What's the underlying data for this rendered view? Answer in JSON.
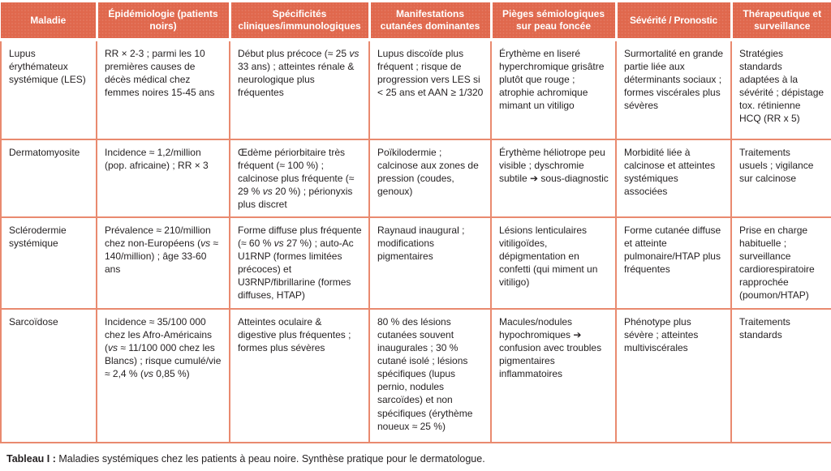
{
  "colors": {
    "header_bg": "#E0684D",
    "header_text": "#FFFFFF",
    "border": "#E98A6F",
    "body_text": "#231F20"
  },
  "table": {
    "columns": [
      "Maladie",
      "Épidémiologie (patients noirs)",
      "Spécificités cliniques/immunologiques",
      "Manifestations cutanées dominantes",
      "Pièges sémiologiques sur peau foncée",
      "Sévérité / Pronostic",
      "Thérapeutique et surveillance"
    ],
    "rows": [
      {
        "cells": [
          "Lupus érythémateux systémique (LES)",
          "RR × 2-3 ; parmi les 10 premières causes de décès médical chez femmes noires 15-45 ans",
          "Début plus précoce (≈ 25 vs 33 ans) ; atteintes rénale & neurologique plus fréquentes",
          "Lupus discoïde plus fréquent ; risque de progression vers LES si < 25 ans et AAN ≥ 1/320",
          "Érythème en liseré hyperchromique grisâtre plutôt que rouge ; atrophie achromique mimant un vitiligo",
          "Surmortalité en grande partie liée aux déterminants sociaux ; formes viscérales plus sévères",
          "Stratégies standards adaptées à la sévérité ; dépistage tox. rétinienne HCQ (RR x 5)"
        ]
      },
      {
        "cells": [
          "Dermatomyosite",
          "Incidence ≈ 1,2/million (pop. africaine) ; RR × 3",
          "Œdème périorbitaire très fréquent (≈ 100 %) ; calcinose plus fréquente (≈ 29 % vs 20 %) ; périonyxis plus discret",
          "Poïkilodermie ; calcinose aux zones de pression (coudes, genoux)",
          "Érythème héliotrope peu visible ; dyschromie subtile ➔ sous-diagnostic",
          "Morbidité liée à calcinose et atteintes systémiques associées",
          "Traitements usuels ; vigilance sur calcinose"
        ]
      },
      {
        "cells": [
          "Sclérodermie systémique",
          "Prévalence ≈ 210/million chez non-Européens (vs ≈ 140/million) ; âge 33-60 ans",
          "Forme diffuse plus fréquente (≈ 60 % vs 27 %) ; auto-Ac U1RNP (formes limitées précoces) et U3RNP/fibrillarine (formes diffuses, HTAP)",
          "Raynaud inaugural ; modifications pigmentaires",
          "Lésions lenticulaires vitiligoïdes, dépigmentation en confetti (qui miment un vitiligo)",
          "Forme cutanée diffuse et atteinte pulmonaire/HTAP plus fréquentes",
          "Prise en charge habituelle ; surveillance cardiorespiratoire rapprochée (poumon/HTAP)"
        ]
      },
      {
        "cells": [
          "Sarcoïdose",
          "Incidence ≈ 35/100 000 chez les Afro-Américains (vs ≈ 11/100 000 chez les Blancs) ; risque cumulé/vie ≈ 2,4 % (vs 0,85 %)",
          "Atteintes oculaire & digestive plus fréquentes ; formes plus sévères",
          "80 % des lésions cutanées souvent inaugurales ; 30 % cutané isolé ; lésions spécifiques (lupus pernio, nodules sarcoïdes) et non spécifiques (érythème noueux ≈ 25 %)",
          "Macules/nodules hypochromiques ➔ confusion avec troubles pigmentaires inflammatoires",
          "Phénotype plus sévère ; atteintes multiviscérales",
          "Traitements standards"
        ]
      }
    ]
  },
  "caption": {
    "label": "Tableau I :",
    "text": "Maladies systémiques chez les patients à peau noire. Synthèse pratique pour le dermatologue."
  }
}
